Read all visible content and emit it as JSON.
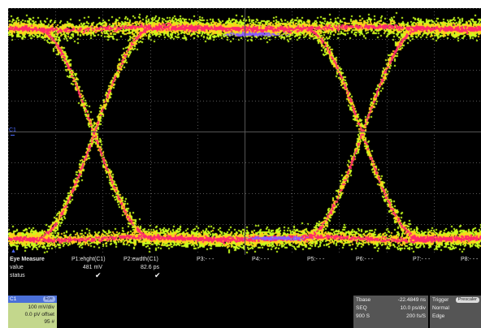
{
  "channel_marker": "C1",
  "colors": {
    "background": "#000000",
    "grid": "#555555",
    "eye_outer": "#c8ff1e",
    "eye_mid": "#ffd21a",
    "eye_core": "#ff2a6a",
    "eye_hot": "#8a5cff",
    "channel": "#4d6bff"
  },
  "measure": {
    "title": "Eye Measure",
    "row_labels": [
      "value",
      "status"
    ],
    "params": [
      {
        "name": "P1:ehght(C1)",
        "value": "481 mV",
        "status": "✔"
      },
      {
        "name": "P2:ewdth(C1)",
        "value": "82.6 ps",
        "status": "✔"
      },
      {
        "name": "P3:- - -",
        "value": "",
        "status": ""
      },
      {
        "name": "P4:- - -",
        "value": "",
        "status": ""
      },
      {
        "name": "P5:- - -",
        "value": "",
        "status": ""
      },
      {
        "name": "P6:- - -",
        "value": "",
        "status": ""
      },
      {
        "name": "P7:- - -",
        "value": "",
        "status": ""
      },
      {
        "name": "P8:- - -",
        "value": "",
        "status": ""
      }
    ]
  },
  "channel_box": {
    "name": "C1",
    "badge": "Eye",
    "lines": [
      "100 mV/div",
      "0.0 pV offset",
      "95 #"
    ]
  },
  "timebase": {
    "label": "Tbase",
    "delay": "-22.4849 ns",
    "mode": "SEQ",
    "scale": "10.0 ps/div",
    "points": "900 S",
    "rate": "200 fs/S"
  },
  "trigger": {
    "label": "Trigger",
    "badge": "Prescaler",
    "mode": "Normal",
    "type": "Edge"
  }
}
